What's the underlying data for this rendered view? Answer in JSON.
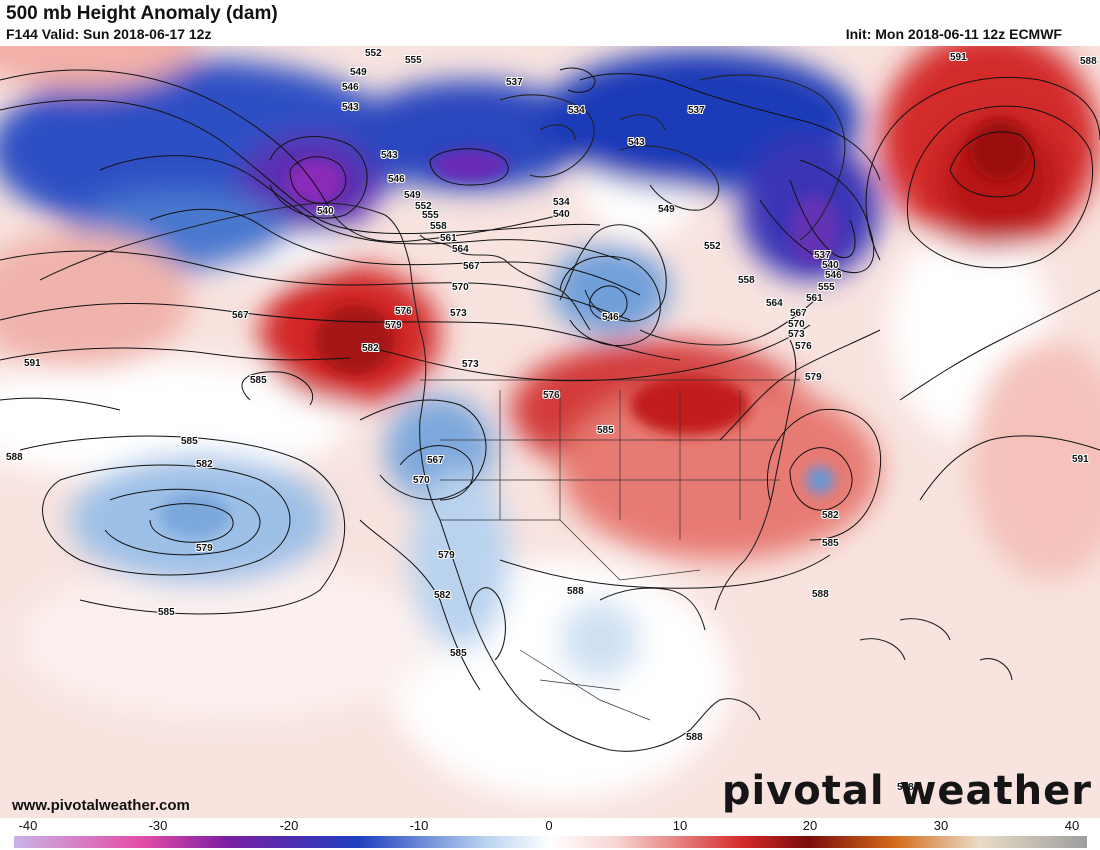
{
  "header": {
    "title": "500 mb Height Anomaly (dam)",
    "valid": "F144 Valid: Sun 2018-06-17 12z",
    "init": "Init: Mon 2018-06-11 12z ECMWF"
  },
  "footer": {
    "website": "www.pivotalweather.com",
    "brand": "pivotal weather"
  },
  "colorbar": {
    "ticks": [
      "-40",
      "-30",
      "-20",
      "-10",
      "0",
      "10",
      "20",
      "30",
      "40"
    ],
    "colors": {
      "neg_extreme": "#c9b3e6",
      "neg_magenta": "#e34ca6",
      "neg_purple": "#7a1fa2",
      "neg_blue": "#1f3fbf",
      "neg_light": "#b9d3ef",
      "zero": "#ffffff",
      "pos_light": "#f7d6d2",
      "pos_red": "#d42a2a",
      "pos_dark": "#7a0d0d",
      "pos_orange": "#d46a1a",
      "pos_tan": "#e9dcc6",
      "pos_gray": "#9e9e9e"
    }
  },
  "map": {
    "contour_labels": [
      {
        "text": "552"
      },
      {
        "text": "555"
      },
      {
        "text": "549"
      },
      {
        "text": "546"
      },
      {
        "text": "543"
      },
      {
        "text": "537"
      },
      {
        "text": "534"
      },
      {
        "text": "543"
      },
      {
        "text": "537"
      },
      {
        "text": "591"
      },
      {
        "text": "588"
      },
      {
        "text": "540"
      },
      {
        "text": "543"
      },
      {
        "text": "546"
      },
      {
        "text": "549"
      },
      {
        "text": "552"
      },
      {
        "text": "555"
      },
      {
        "text": "558"
      },
      {
        "text": "561"
      },
      {
        "text": "564"
      },
      {
        "text": "567"
      },
      {
        "text": "570"
      },
      {
        "text": "534"
      },
      {
        "text": "540"
      },
      {
        "text": "549"
      },
      {
        "text": "552"
      },
      {
        "text": "558"
      },
      {
        "text": "546"
      },
      {
        "text": "537"
      },
      {
        "text": "540"
      },
      {
        "text": "546"
      },
      {
        "text": "555"
      },
      {
        "text": "561"
      },
      {
        "text": "564"
      },
      {
        "text": "567"
      },
      {
        "text": "570"
      },
      {
        "text": "573"
      },
      {
        "text": "576"
      },
      {
        "text": "579"
      },
      {
        "text": "567"
      },
      {
        "text": "576"
      },
      {
        "text": "573"
      },
      {
        "text": "579"
      },
      {
        "text": "582"
      },
      {
        "text": "585"
      },
      {
        "text": "591"
      },
      {
        "text": "573"
      },
      {
        "text": "576"
      },
      {
        "text": "585"
      },
      {
        "text": "585"
      },
      {
        "text": "588"
      },
      {
        "text": "582"
      },
      {
        "text": "567"
      },
      {
        "text": "570"
      },
      {
        "text": "579"
      },
      {
        "text": "579"
      },
      {
        "text": "582"
      },
      {
        "text": "585"
      },
      {
        "text": "585"
      },
      {
        "text": "588"
      },
      {
        "text": "582"
      },
      {
        "text": "585"
      },
      {
        "text": "588"
      },
      {
        "text": "591"
      },
      {
        "text": "588"
      },
      {
        "text": "588"
      }
    ]
  }
}
